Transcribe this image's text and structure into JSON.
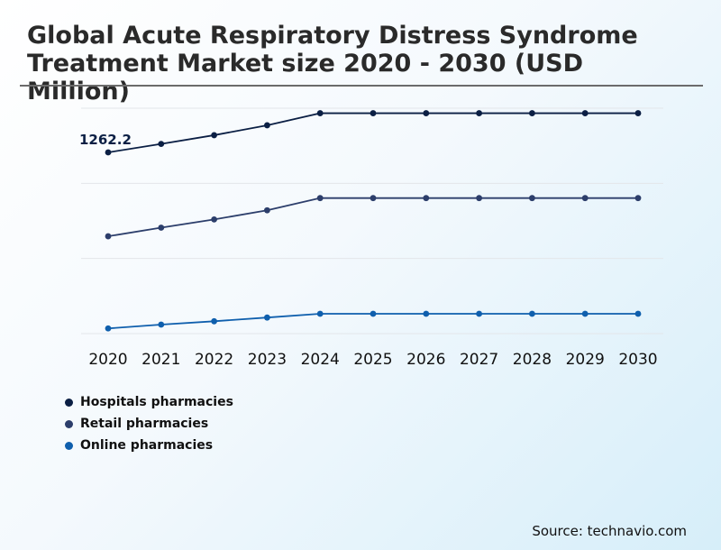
{
  "title": "Global Acute Respiratory Distress Syndrome Treatment Market size 2020 - 2030 (USD Million)",
  "source": "Source: technavio.com",
  "chart_data": {
    "type": "line",
    "x": [
      "2020",
      "2021",
      "2022",
      "2023",
      "2024",
      "2025",
      "2026",
      "2027",
      "2028",
      "2029",
      "2030"
    ],
    "series": [
      {
        "name": "Hospitals pharmacies",
        "color": "#0b1f44",
        "values": [
          1262.2,
          1321,
          1382,
          1451,
          1535,
          1535,
          1535,
          1535,
          1535,
          1535,
          1535
        ]
      },
      {
        "name": "Retail pharmacies",
        "color": "#2c3e6b",
        "values": [
          678,
          738,
          795,
          859,
          944,
          944,
          944,
          944,
          944,
          944,
          944
        ]
      },
      {
        "name": "Online pharmacies",
        "color": "#0f5fad",
        "values": [
          36,
          63,
          86,
          112,
          138,
          138,
          138,
          138,
          138,
          138,
          138
        ]
      }
    ],
    "annotations": [
      {
        "series": 0,
        "index": 0,
        "text": "1262.2"
      }
    ],
    "ylim": [
      0,
      1570
    ],
    "grid": true,
    "legend_position": "bottom-left",
    "xlabel": "",
    "ylabel": ""
  }
}
